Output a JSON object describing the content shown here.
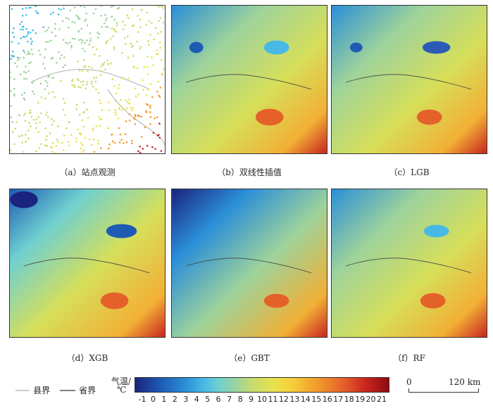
{
  "captions": {
    "a": "（a）站点观测",
    "b": "（b）双线性插值",
    "c": "（c）LGB",
    "d": "（d）XGB",
    "e": "（e）GBT",
    "f": "（f）RF"
  },
  "legend": {
    "county_boundary": "县界",
    "province_boundary": "省界",
    "colorbar_label_line1": "气温/",
    "colorbar_label_line2": "℃",
    "ticks": [
      "-1",
      "0",
      "1",
      "2",
      "3",
      "4",
      "5",
      "6",
      "7",
      "8",
      "9",
      "10",
      "11",
      "12",
      "13",
      "14",
      "15",
      "16",
      "17",
      "18",
      "19",
      "20",
      "21"
    ],
    "scale_start": "0",
    "scale_end": "120 km"
  },
  "colors": {
    "cold": "#1a237e",
    "cool": "#48b9e4",
    "mid": "#c9dd6a",
    "warm": "#f29a2c",
    "hot": "#8e0a10"
  }
}
